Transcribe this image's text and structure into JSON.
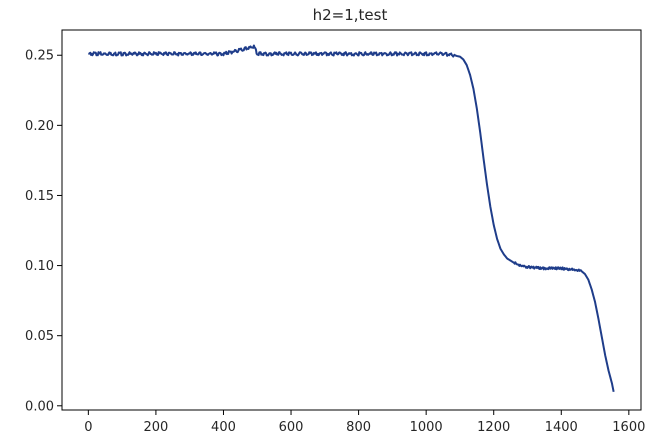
{
  "chart_data": {
    "type": "line",
    "title": "h2=1,test",
    "xlabel": "",
    "ylabel": "",
    "xlim": [
      -78,
      1636
    ],
    "ylim": [
      -0.003,
      0.268
    ],
    "xticks": [
      0,
      200,
      400,
      600,
      800,
      1000,
      1200,
      1400,
      1600
    ],
    "yticks": [
      0.0,
      0.05,
      0.1,
      0.15,
      0.2,
      0.25
    ],
    "xtick_labels": [
      "0",
      "200",
      "400",
      "600",
      "800",
      "1000",
      "1200",
      "1400",
      "1600"
    ],
    "ytick_labels": [
      "0.00",
      "0.05",
      "0.10",
      "0.15",
      "0.20",
      "0.25"
    ],
    "grid": false,
    "legend": "none",
    "line_color": "#1f3d8a",
    "series": [
      {
        "x": [
          0,
          100,
          200,
          300,
          400,
          490,
          500,
          600,
          700,
          800,
          900,
          1000,
          1050,
          1080,
          1100,
          1110,
          1120,
          1130,
          1140,
          1150,
          1160,
          1170,
          1180,
          1190,
          1200,
          1210,
          1220,
          1230,
          1240,
          1260,
          1280,
          1300,
          1350,
          1400,
          1440,
          1460,
          1470,
          1480,
          1490,
          1500,
          1510,
          1520,
          1530,
          1540,
          1550,
          1555
        ],
        "y": [
          0.251,
          0.251,
          0.251,
          0.251,
          0.251,
          0.256,
          0.251,
          0.251,
          0.251,
          0.251,
          0.251,
          0.251,
          0.251,
          0.25,
          0.249,
          0.247,
          0.243,
          0.236,
          0.226,
          0.212,
          0.195,
          0.176,
          0.158,
          0.142,
          0.129,
          0.119,
          0.112,
          0.108,
          0.105,
          0.102,
          0.1,
          0.099,
          0.098,
          0.098,
          0.097,
          0.096,
          0.094,
          0.09,
          0.083,
          0.074,
          0.062,
          0.049,
          0.036,
          0.025,
          0.016,
          0.01
        ]
      }
    ]
  }
}
